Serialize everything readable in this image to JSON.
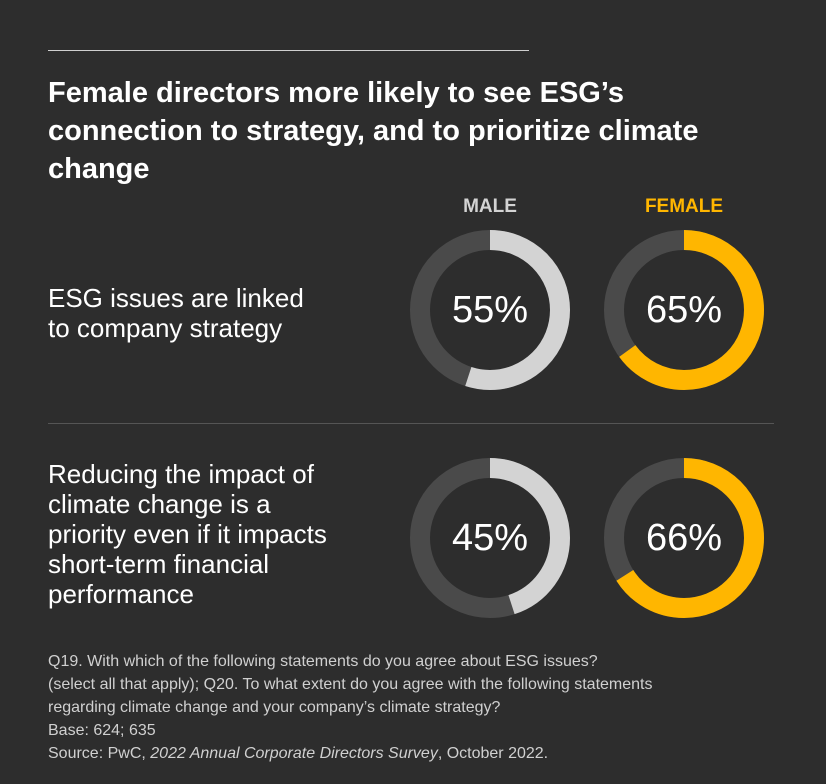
{
  "title": "Female directors more likely to see ESG’s connection to strategy, and to prioritize climate change",
  "columns": {
    "male": "MALE",
    "female": "FEMALE"
  },
  "colors": {
    "background": "#2d2d2d",
    "track": "#4a4a4a",
    "male": "#d3d3d3",
    "female": "#ffb600"
  },
  "chart_data": {
    "type": "donut",
    "title": "Female directors more likely to see ESG’s connection to strategy, and to prioritize climate change",
    "series": [
      {
        "name": "MALE",
        "values": [
          55,
          45
        ]
      },
      {
        "name": "FEMALE",
        "values": [
          65,
          66
        ]
      }
    ],
    "categories": [
      "ESG issues are linked to company strategy",
      "Reducing the impact of climate change is a priority even if it impacts short-term financial performance"
    ],
    "labels": {
      "male": [
        "55%",
        "45%"
      ],
      "female": [
        "65%",
        "66%"
      ]
    },
    "unit": "%"
  },
  "rows": [
    {
      "label_lines": [
        "ESG issues are linked",
        "to company strategy"
      ]
    },
    {
      "label_lines": [
        "Reducing the impact of",
        "climate change is a",
        "priority even if it impacts",
        "short-term financial",
        "performance"
      ]
    }
  ],
  "footnote": {
    "line1": "Q19. With which of the following statements do you agree about ESG issues?",
    "line2": "(select all that apply); Q20. To what extent do you agree with the following statements",
    "line3": "regarding climate change and your company’s climate strategy?",
    "base": "Base: 624; 635",
    "source_prefix": "Source: PwC, ",
    "source_title": "2022 Annual Corporate Directors Survey",
    "source_suffix": ", October 2022."
  }
}
